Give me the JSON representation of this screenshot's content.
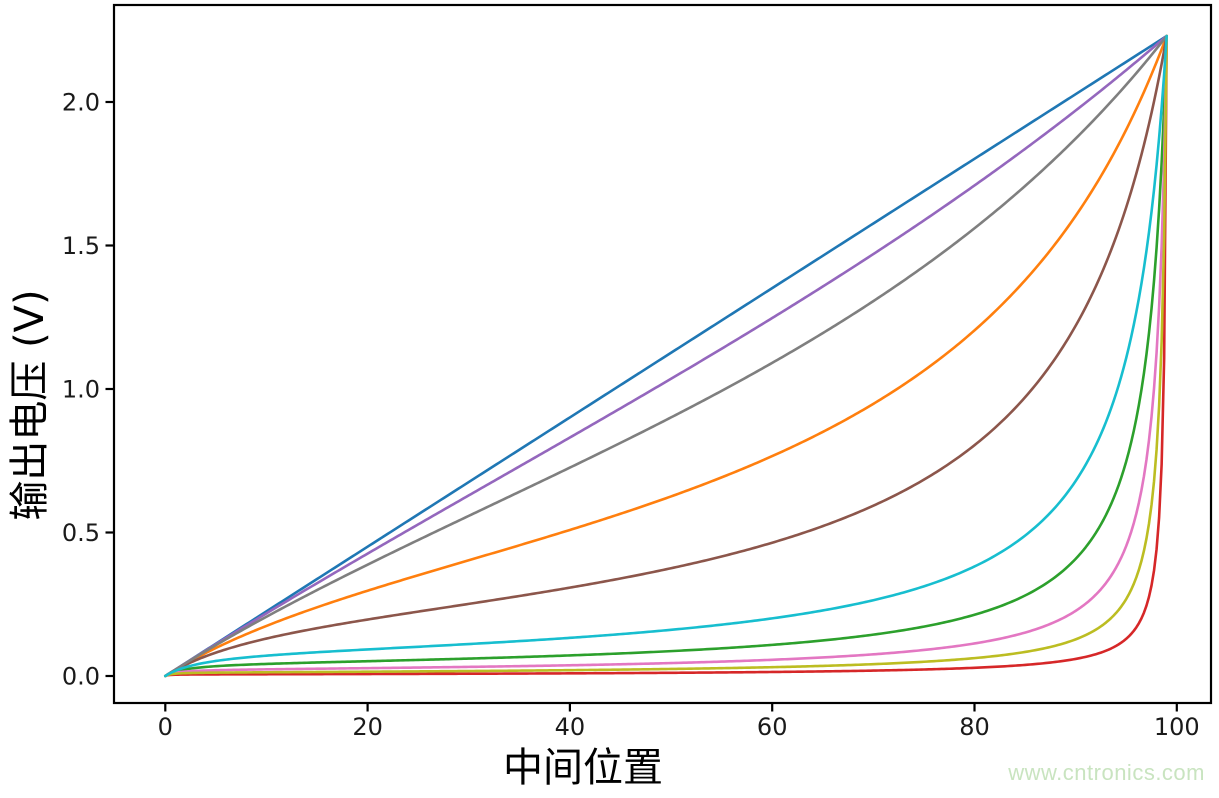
{
  "watermark": {
    "text": "www.cntronics.com",
    "color": "#c9e4c0"
  },
  "chart_data": {
    "type": "line",
    "title": "",
    "xlabel": "中间位置",
    "ylabel": "输出电压 (V)",
    "x_ticks": [
      0,
      20,
      40,
      60,
      80,
      100
    ],
    "x_tick_labels": [
      "0",
      "20",
      "40",
      "60",
      "80",
      "100"
    ],
    "y_ticks": [
      0,
      0.5,
      1.0,
      1.5,
      2.0
    ],
    "y_tick_labels": [
      "0.0",
      "0.5",
      "1.0",
      "1.5",
      "2.0"
    ],
    "xlim": [
      -4.95,
      103.95
    ],
    "ylim": [
      -0.1115,
      2.3415
    ],
    "grid": false,
    "legend": false,
    "axis_color": "#000000",
    "tick_label_color": "#1a1a1a",
    "x_range_of_data": [
      0,
      99
    ],
    "v_max": 2.23,
    "generator_formula": "v(x) = v_max * p / (1 + k * p * (1 - p)), with p = x / 99",
    "sample_x": [
      0,
      10,
      20,
      30,
      40,
      50,
      60,
      70,
      80,
      90,
      95,
      99
    ],
    "series": [
      {
        "name": "blue",
        "color": "#1f77b4",
        "k": 0,
        "values": [
          0,
          0.225,
          0.451,
          0.676,
          0.901,
          1.126,
          1.352,
          1.577,
          1.802,
          2.027,
          2.14,
          2.23
        ]
      },
      {
        "name": "orange",
        "color": "#ff7f0e",
        "k": 3.2,
        "values": [
          0,
          0.175,
          0.297,
          0.403,
          0.509,
          0.626,
          0.766,
          0.948,
          1.204,
          1.603,
          1.904,
          2.23
        ]
      },
      {
        "name": "green",
        "color": "#2ca02c",
        "k": 48,
        "values": [
          0,
          0.042,
          0.052,
          0.061,
          0.072,
          0.087,
          0.108,
          0.144,
          0.213,
          0.408,
          0.748,
          2.23
        ]
      },
      {
        "name": "red",
        "color": "#d62728",
        "k": 400,
        "values": [
          0,
          0.006,
          0.007,
          0.008,
          0.009,
          0.011,
          0.014,
          0.019,
          0.029,
          0.06,
          0.13,
          2.23
        ]
      },
      {
        "name": "purple",
        "color": "#9467bd",
        "k": 0.35,
        "values": [
          0,
          0.218,
          0.426,
          0.629,
          0.831,
          1.036,
          1.247,
          1.47,
          1.709,
          1.97,
          2.111,
          2.23
        ]
      },
      {
        "name": "brown",
        "color": "#8c564b",
        "k": 8,
        "values": [
          0,
          0.13,
          0.197,
          0.251,
          0.308,
          0.375,
          0.464,
          0.593,
          0.804,
          1.22,
          1.633,
          2.23
        ]
      },
      {
        "name": "pink",
        "color": "#e377c2",
        "k": 96,
        "values": [
          0,
          0.023,
          0.027,
          0.032,
          0.037,
          0.045,
          0.057,
          0.076,
          0.113,
          0.227,
          0.453,
          2.23
        ]
      },
      {
        "name": "gray",
        "color": "#7f7f7f",
        "k": 1.0,
        "values": [
          0,
          0.207,
          0.388,
          0.558,
          0.726,
          0.901,
          1.091,
          1.306,
          1.56,
          1.873,
          2.06,
          2.23
        ]
      },
      {
        "name": "olive",
        "color": "#bcbd22",
        "k": 180,
        "values": [
          0,
          0.013,
          0.015,
          0.017,
          0.02,
          0.024,
          0.031,
          0.041,
          0.062,
          0.128,
          0.268,
          2.23
        ]
      },
      {
        "name": "cyan",
        "color": "#17becf",
        "k": 24,
        "values": [
          0,
          0.071,
          0.093,
          0.111,
          0.133,
          0.161,
          0.201,
          0.264,
          0.382,
          0.68,
          1.108,
          2.23
        ]
      }
    ]
  }
}
